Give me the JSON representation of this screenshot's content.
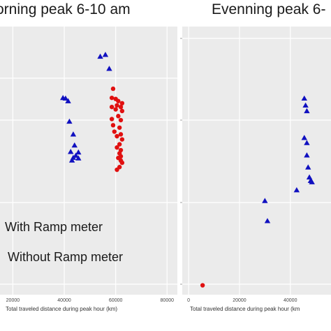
{
  "chart_data": [
    {
      "type": "scatter",
      "title": "orning peak 6-10 am",
      "xlabel": "Total traveled distance during peak hour (km)",
      "xticks": [
        "20000",
        "40000",
        "60000",
        "80000"
      ],
      "xlim": [
        15000,
        84000
      ],
      "ylim": [
        0,
        1
      ],
      "y_axis_labels_visible": false,
      "grid": true,
      "colors": {
        "with_ramp_meter": "#1010c0",
        "without_ramp_meter": "#e01010",
        "panel_bg": "#ebebeb",
        "grid": "#ffffff"
      },
      "series": [
        {
          "name": "With Ramp meter",
          "marker": "triangle",
          "color": "#1010c0",
          "points": [
            {
              "x": 54000,
              "y": 0.888
            },
            {
              "x": 56000,
              "y": 0.895
            },
            {
              "x": 57500,
              "y": 0.843
            },
            {
              "x": 39500,
              "y": 0.734
            },
            {
              "x": 40500,
              "y": 0.732
            },
            {
              "x": 41500,
              "y": 0.722
            },
            {
              "x": 42000,
              "y": 0.646
            },
            {
              "x": 43500,
              "y": 0.598
            },
            {
              "x": 44000,
              "y": 0.557
            },
            {
              "x": 42500,
              "y": 0.533
            },
            {
              "x": 45500,
              "y": 0.531
            },
            {
              "x": 44500,
              "y": 0.519
            },
            {
              "x": 43500,
              "y": 0.511
            },
            {
              "x": 45500,
              "y": 0.509
            },
            {
              "x": 43000,
              "y": 0.501
            }
          ]
        },
        {
          "name": "Without Ramp meter",
          "marker": "circle",
          "color": "#e01010",
          "points": [
            {
              "x": 59000,
              "y": 0.768
            },
            {
              "x": 58500,
              "y": 0.734
            },
            {
              "x": 60000,
              "y": 0.73
            },
            {
              "x": 61000,
              "y": 0.722
            },
            {
              "x": 62500,
              "y": 0.714
            },
            {
              "x": 60500,
              "y": 0.706
            },
            {
              "x": 62000,
              "y": 0.7
            },
            {
              "x": 58500,
              "y": 0.7
            },
            {
              "x": 60000,
              "y": 0.691
            },
            {
              "x": 62500,
              "y": 0.685
            },
            {
              "x": 61000,
              "y": 0.666
            },
            {
              "x": 58500,
              "y": 0.655
            },
            {
              "x": 62000,
              "y": 0.651
            },
            {
              "x": 59000,
              "y": 0.632
            },
            {
              "x": 61500,
              "y": 0.623
            },
            {
              "x": 59500,
              "y": 0.608
            },
            {
              "x": 62000,
              "y": 0.598
            },
            {
              "x": 60500,
              "y": 0.591
            },
            {
              "x": 62500,
              "y": 0.579
            },
            {
              "x": 61500,
              "y": 0.561
            },
            {
              "x": 60500,
              "y": 0.549
            },
            {
              "x": 62000,
              "y": 0.539
            },
            {
              "x": 61500,
              "y": 0.527
            },
            {
              "x": 62000,
              "y": 0.516
            },
            {
              "x": 61000,
              "y": 0.51
            },
            {
              "x": 62000,
              "y": 0.5
            },
            {
              "x": 62500,
              "y": 0.492
            },
            {
              "x": 61500,
              "y": 0.476
            },
            {
              "x": 60500,
              "y": 0.466
            }
          ]
        }
      ]
    },
    {
      "type": "scatter",
      "title": "Evenning peak 6-",
      "xlabel": "Total traveled distance during peak hour (km",
      "xticks": [
        "0",
        "20000",
        "40000"
      ],
      "xlim": [
        -2500,
        56000
      ],
      "ylim": [
        0,
        1
      ],
      "y_axis_labels_visible": false,
      "grid": true,
      "colors": {
        "with_ramp_meter": "#1010c0",
        "without_ramp_meter": "#e01010",
        "panel_bg": "#ebebeb",
        "grid": "#ffffff"
      },
      "series": [
        {
          "name": "With Ramp meter",
          "marker": "triangle",
          "color": "#1010c0",
          "points": [
            {
              "x": 45500,
              "y": 0.732
            },
            {
              "x": 46000,
              "y": 0.706
            },
            {
              "x": 46500,
              "y": 0.685
            },
            {
              "x": 45500,
              "y": 0.585
            },
            {
              "x": 46500,
              "y": 0.566
            },
            {
              "x": 46500,
              "y": 0.52
            },
            {
              "x": 47000,
              "y": 0.475
            },
            {
              "x": 47500,
              "y": 0.438
            },
            {
              "x": 48000,
              "y": 0.425
            },
            {
              "x": 48500,
              "y": 0.42
            },
            {
              "x": 42500,
              "y": 0.39
            },
            {
              "x": 30000,
              "y": 0.35
            },
            {
              "x": 31000,
              "y": 0.275
            }
          ]
        },
        {
          "name": "Without Ramp meter",
          "marker": "circle",
          "color": "#e01010",
          "points": [
            {
              "x": 5500,
              "y": 0.035
            }
          ]
        }
      ]
    }
  ],
  "legend": {
    "with_label": "With Ramp meter",
    "without_label": "Without Ramp meter"
  }
}
